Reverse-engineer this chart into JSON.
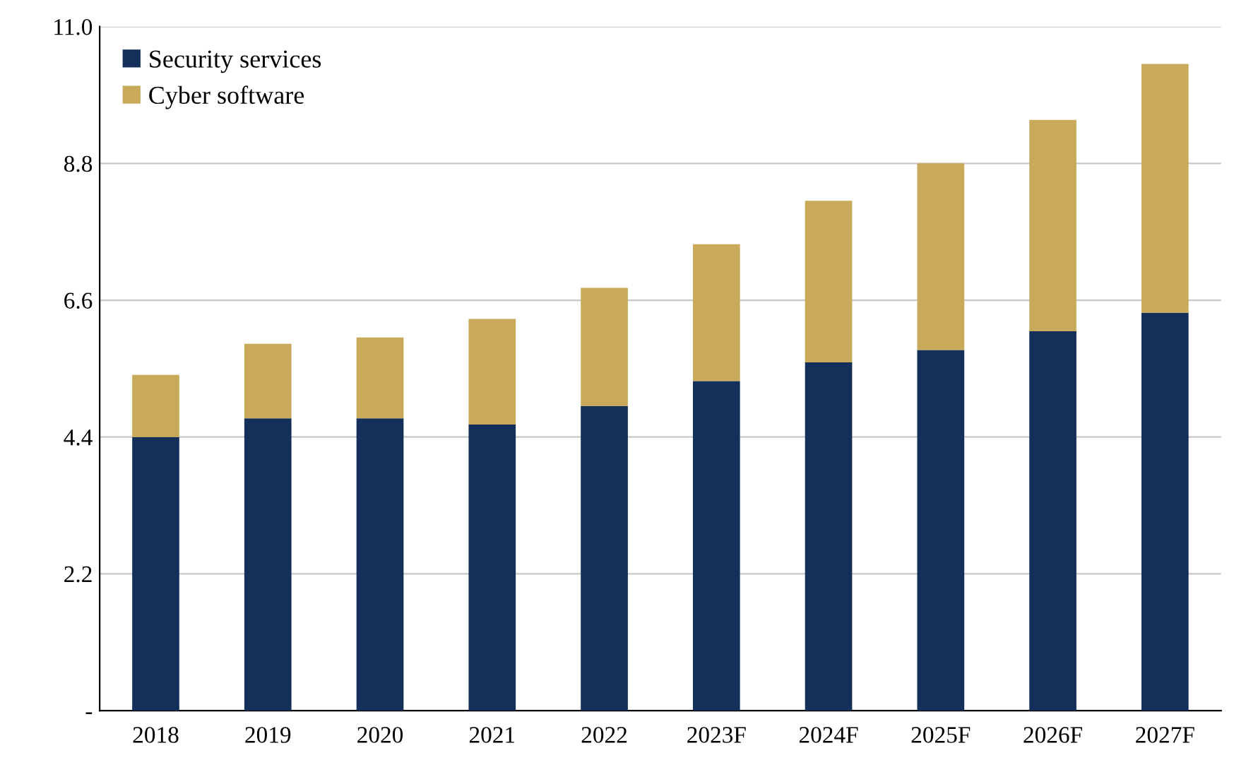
{
  "chart_data": {
    "type": "bar",
    "stacked": true,
    "categories": [
      "2018",
      "2019",
      "2020",
      "2021",
      "2022",
      "2023F",
      "2024F",
      "2025F",
      "2026F",
      "2027F"
    ],
    "series": [
      {
        "name": "Security services",
        "color": "#14305a",
        "values": [
          4.4,
          4.7,
          4.7,
          4.6,
          4.9,
          5.3,
          5.6,
          5.8,
          6.1,
          6.4
        ]
      },
      {
        "name": "Cyber software",
        "color": "#c8aa5a",
        "values": [
          1.0,
          1.2,
          1.3,
          1.7,
          1.9,
          2.2,
          2.6,
          3.0,
          3.4,
          4.0
        ]
      }
    ],
    "ylim": [
      0,
      11.0
    ],
    "yticks": [
      {
        "value": 0,
        "label": "-"
      },
      2.2,
      4.4,
      6.6,
      8.8,
      {
        "value": 11.0,
        "label": "11.0"
      }
    ],
    "grid": "y",
    "legend": "top left"
  }
}
